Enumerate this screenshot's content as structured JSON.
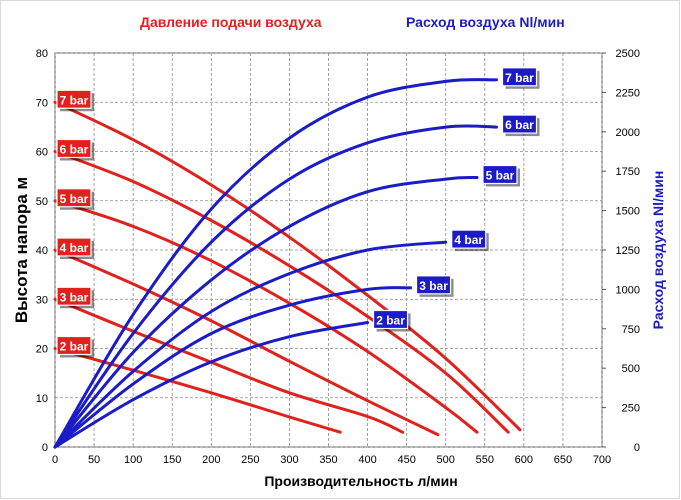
{
  "legend": {
    "air_pressure": "Давление подачи воздуха",
    "air_flow": "Расход воздуха Nl/мин"
  },
  "chart_data": {
    "type": "line",
    "title": "",
    "xlabel": "Производительность л/мин",
    "ylabel": "Высота напора м",
    "y2label": "Расход воздуха Nl/мин",
    "xlim": [
      0,
      700
    ],
    "ylim": [
      0,
      80
    ],
    "y2lim": [
      0,
      2500
    ],
    "x_ticks": [
      0,
      50,
      100,
      150,
      200,
      250,
      300,
      350,
      400,
      450,
      500,
      550,
      600,
      650,
      700
    ],
    "y_ticks": [
      0,
      10,
      20,
      30,
      40,
      50,
      60,
      70,
      80
    ],
    "y2_ticks": [
      0,
      250,
      500,
      750,
      1000,
      1250,
      1500,
      1750,
      2000,
      2250,
      2500
    ],
    "grid": true,
    "head_series": [
      {
        "name": "2 bar",
        "x": [
          0,
          100,
          200,
          300,
          365
        ],
        "y": [
          20,
          15.6,
          11.0,
          6.1,
          3.0
        ]
      },
      {
        "name": "3 bar",
        "x": [
          0,
          100,
          200,
          300,
          400,
          445
        ],
        "y": [
          30,
          23.5,
          17.2,
          11.0,
          6.2,
          3.0
        ]
      },
      {
        "name": "4 bar",
        "x": [
          0,
          100,
          200,
          300,
          400,
          490
        ],
        "y": [
          40,
          33.1,
          25.6,
          17.4,
          9.4,
          2.5
        ]
      },
      {
        "name": "5 bar",
        "x": [
          0,
          100,
          200,
          300,
          400,
          500,
          540
        ],
        "y": [
          50,
          44.8,
          37.8,
          29.2,
          19.4,
          8.0,
          3.0
        ]
      },
      {
        "name": "6 bar",
        "x": [
          0,
          100,
          200,
          300,
          400,
          500,
          580
        ],
        "y": [
          60,
          53.9,
          46.0,
          36.8,
          26.5,
          15.0,
          3.0
        ]
      },
      {
        "name": "7 bar",
        "x": [
          0,
          100,
          200,
          300,
          400,
          500,
          595
        ],
        "y": [
          70,
          62.4,
          53.2,
          42.6,
          30.8,
          18.0,
          3.5
        ]
      }
    ],
    "air_series": [
      {
        "name": "2 bar",
        "x": [
          0,
          100,
          200,
          300,
          400
        ],
        "y": [
          0,
          300,
          540,
          700,
          790
        ]
      },
      {
        "name": "3 bar",
        "x": [
          0,
          100,
          200,
          300,
          400,
          455
        ],
        "y": [
          0,
          400,
          720,
          900,
          1000,
          1010
        ]
      },
      {
        "name": "4 bar",
        "x": [
          0,
          100,
          200,
          300,
          400,
          500
        ],
        "y": [
          0,
          480,
          860,
          1100,
          1250,
          1300
        ]
      },
      {
        "name": "5 bar",
        "x": [
          0,
          100,
          200,
          300,
          400,
          500,
          540
        ],
        "y": [
          0,
          600,
          1060,
          1400,
          1620,
          1700,
          1710
        ]
      },
      {
        "name": "6 bar",
        "x": [
          0,
          100,
          200,
          300,
          400,
          500,
          565
        ],
        "y": [
          0,
          720,
          1300,
          1700,
          1930,
          2030,
          2030
        ]
      },
      {
        "name": "7 bar",
        "x": [
          0,
          100,
          200,
          300,
          400,
          500,
          565
        ],
        "y": [
          0,
          840,
          1510,
          1960,
          2220,
          2320,
          2330
        ]
      }
    ],
    "head_colour": "#e0211d",
    "air_colour": "#1c1cc6"
  }
}
